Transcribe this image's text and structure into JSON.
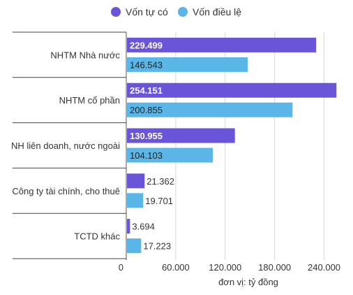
{
  "chart_data": {
    "type": "bar",
    "orientation": "horizontal",
    "categories": [
      "NHTM Nhà nước",
      "NHTM cổ phần",
      "NH liên doanh, nước ngoài",
      "Công ty tài chính, cho thuê",
      "TCTD khác"
    ],
    "series": [
      {
        "name": "Vốn tự có",
        "color": "#6a55d9",
        "values": [
          229499,
          254151,
          130955,
          21362,
          3694
        ],
        "value_labels": [
          "229.499",
          "254.151",
          "130.955",
          "21.362",
          "3.694"
        ]
      },
      {
        "name": "Vốn điều lệ",
        "color": "#5bb6e8",
        "values": [
          146543,
          200855,
          104103,
          19701,
          17223
        ],
        "value_labels": [
          "146.543",
          "200.855",
          "104.103",
          "19.701",
          "17.223"
        ]
      }
    ],
    "xlim": [
      0,
      270000
    ],
    "x_ticks": [
      0,
      60000,
      120000,
      180000,
      240000
    ],
    "x_tick_labels": [
      "0",
      "60.000",
      "120.000",
      "180.000",
      "240.000"
    ],
    "unit_note": "đơn vị: tỷ đồng",
    "legend_position": "top",
    "grid": true,
    "label_inside_threshold": 100000
  }
}
